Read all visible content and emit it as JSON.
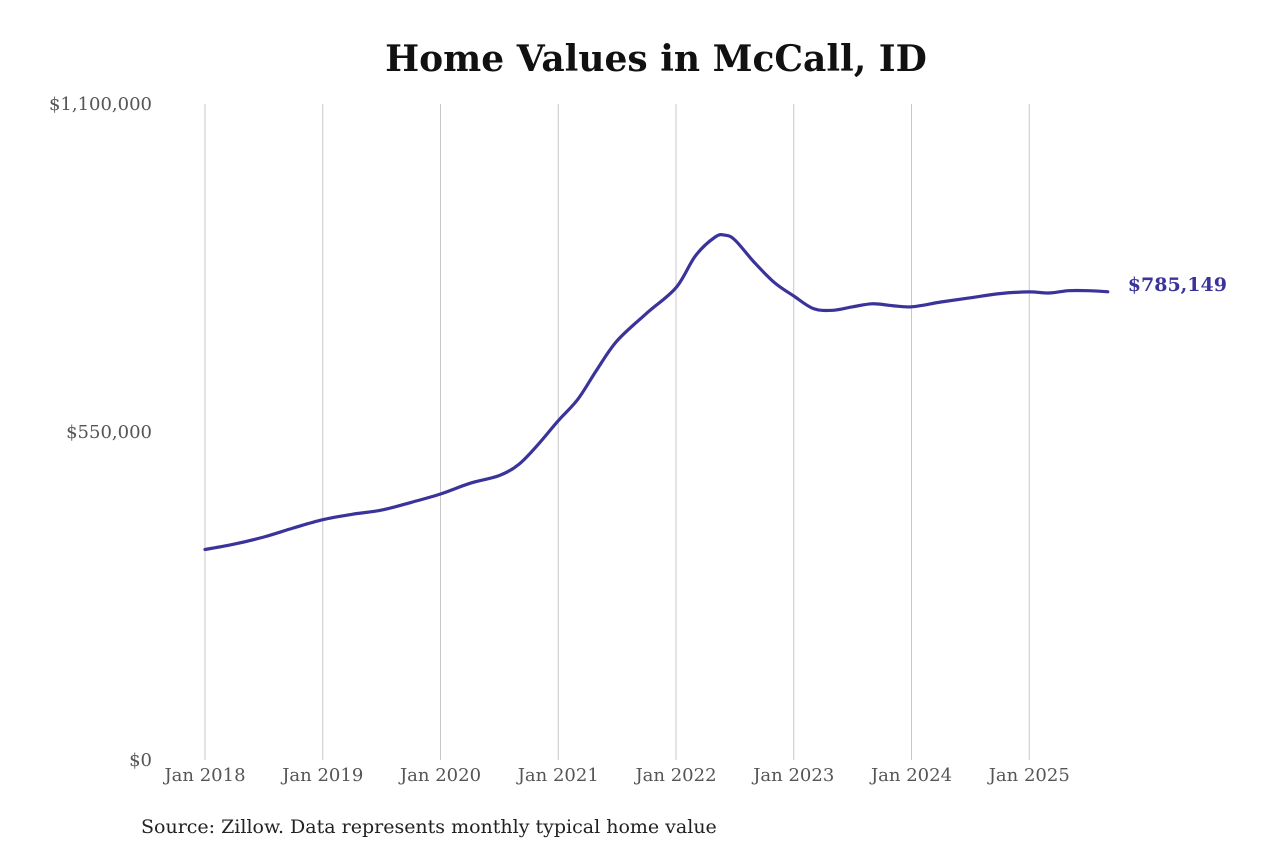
{
  "chart_data": {
    "type": "line",
    "title": "Home Values in McCall, ID",
    "xlabel": "",
    "ylabel": "",
    "ylim": [
      0,
      1100000
    ],
    "y_ticks": [
      {
        "value": 0,
        "label": "$0"
      },
      {
        "value": 550000,
        "label": "$550,000"
      },
      {
        "value": 1100000,
        "label": "$1,100,000"
      }
    ],
    "x_ticks": [
      {
        "value": 2018.0,
        "label": "Jan 2018"
      },
      {
        "value": 2019.0,
        "label": "Jan 2019"
      },
      {
        "value": 2020.0,
        "label": "Jan 2020"
      },
      {
        "value": 2021.0,
        "label": "Jan 2021"
      },
      {
        "value": 2022.0,
        "label": "Jan 2022"
      },
      {
        "value": 2023.0,
        "label": "Jan 2023"
      },
      {
        "value": 2024.0,
        "label": "Jan 2024"
      },
      {
        "value": 2025.0,
        "label": "Jan 2025"
      }
    ],
    "xlim": [
      2018.0,
      2025.667
    ],
    "grid": "vertical",
    "series": [
      {
        "color": "#3a3399",
        "x": [
          2018.0,
          2018.25,
          2018.5,
          2018.75,
          2019.0,
          2019.25,
          2019.5,
          2019.75,
          2020.0,
          2020.25,
          2020.5,
          2020.667,
          2020.833,
          2021.0,
          2021.167,
          2021.333,
          2021.5,
          2021.75,
          2022.0,
          2022.167,
          2022.333,
          2022.417,
          2022.5,
          2022.667,
          2022.833,
          2023.0,
          2023.167,
          2023.333,
          2023.5,
          2023.667,
          2023.833,
          2024.0,
          2024.25,
          2024.5,
          2024.75,
          2025.0,
          2025.167,
          2025.333,
          2025.5,
          2025.667
        ],
        "y": [
          353000,
          362000,
          374000,
          389000,
          403000,
          412000,
          419000,
          432000,
          446000,
          464000,
          477000,
          496000,
          530000,
          569000,
          605000,
          656000,
          703000,
          749000,
          792000,
          846000,
          877000,
          880000,
          872000,
          834000,
          801000,
          778000,
          757000,
          754000,
          760000,
          765000,
          762000,
          760000,
          768000,
          775000,
          782000,
          785000,
          783000,
          787000,
          787000,
          785149
        ]
      }
    ],
    "end_label": "$785,149"
  },
  "source_note": "Source: Zillow. Data represents monthly typical home value",
  "colors": {
    "line": "#3a3399",
    "grid": "#c8c8c8",
    "title": "#111111",
    "tick_text": "#555555"
  }
}
